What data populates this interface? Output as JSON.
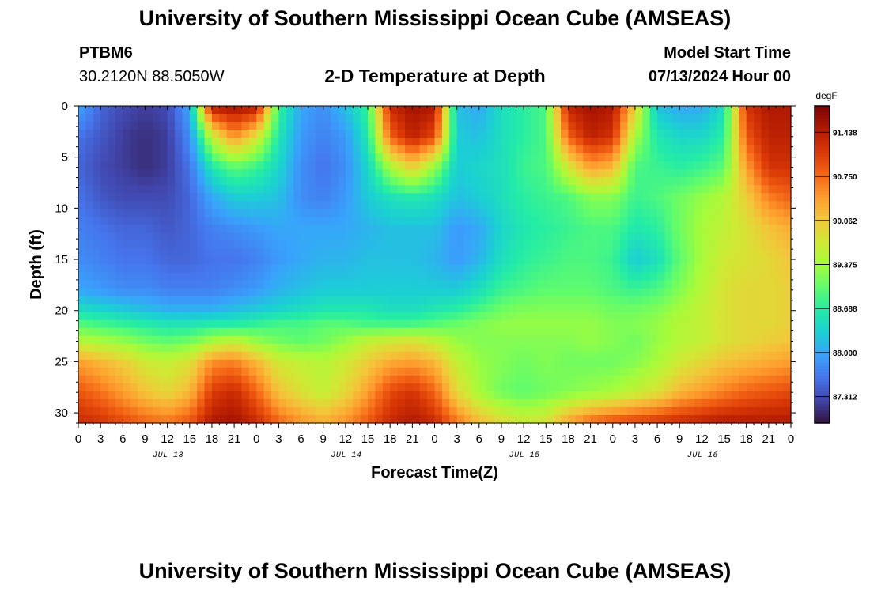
{
  "header": {
    "title": "University of Southern Mississippi Ocean Cube (AMSEAS)",
    "station": "PTBM6",
    "coords": "30.2120N  88.5050W",
    "subtitle": "2-D Temperature at Depth",
    "model_start_label": "Model Start Time",
    "model_start_value": "07/13/2024 Hour 00"
  },
  "footer": {
    "title": "University of Southern Mississippi Ocean Cube (AMSEAS)"
  },
  "chart_data": {
    "type": "heatmap",
    "title": "2-D Temperature at Depth",
    "xlabel": "Forecast Time(Z)",
    "ylabel": "Depth (ft)",
    "x_range_hours": [
      0,
      96
    ],
    "y_range_ft": [
      0,
      31
    ],
    "y_inverted": true,
    "x_tick_labels": [
      "0",
      "3",
      "6",
      "9",
      "12",
      "15",
      "18",
      "21",
      "0",
      "3",
      "6",
      "9",
      "12",
      "15",
      "18",
      "21",
      "0",
      "3",
      "6",
      "9",
      "12",
      "15",
      "18",
      "21",
      "0",
      "3",
      "6",
      "9",
      "12",
      "15",
      "18",
      "21",
      "0"
    ],
    "day_labels": [
      "JUL 13",
      "JUL 14",
      "JUL 15",
      "JUL 16"
    ],
    "y_tick_labels": [
      "0",
      "5",
      "10",
      "15",
      "20",
      "25",
      "30"
    ],
    "colorbar": {
      "unit": "degF",
      "range": [
        86.9,
        91.85
      ],
      "tick_labels": [
        "91.438",
        "90.750",
        "90.062",
        "89.375",
        "88.688",
        "88.000",
        "87.312"
      ],
      "tick_values": [
        91.438,
        90.75,
        90.062,
        89.375,
        88.688,
        88.0,
        87.312
      ],
      "colors": [
        "#30123b",
        "#4145ab",
        "#4675ed",
        "#39a2fc",
        "#1bcfd4",
        "#24eca6",
        "#61fc6c",
        "#a4fc3b",
        "#d1e834",
        "#f3c63a",
        "#fe9b2d",
        "#f36315",
        "#d93806",
        "#b11901",
        "#7a0402"
      ]
    },
    "depths_ft": [
      0,
      3,
      6,
      9,
      12,
      15,
      18,
      20,
      21.5,
      23,
      25,
      28,
      31
    ],
    "hours": [
      0,
      3,
      6,
      9,
      12,
      15,
      18,
      21,
      24,
      27,
      30,
      33,
      36,
      39,
      42,
      45,
      48,
      51,
      54,
      57,
      60,
      63,
      66,
      69,
      72,
      75,
      78,
      81,
      84,
      87,
      90,
      93,
      96
    ],
    "temperature_degF": [
      [
        88.0,
        87.5,
        87.3,
        87.2,
        87.3,
        88.0,
        91.5,
        91.6,
        91.5,
        88.8,
        88.0,
        87.8,
        88.2,
        88.8,
        91.3,
        91.6,
        91.5,
        88.2,
        88.0,
        88.5,
        88.7,
        88.9,
        91.4,
        91.6,
        91.5,
        90.0,
        88.2,
        88.0,
        88.0,
        88.5,
        91.2,
        91.5,
        91.5
      ],
      [
        87.6,
        87.4,
        87.2,
        87.1,
        87.2,
        87.8,
        89.6,
        90.5,
        89.8,
        88.6,
        87.9,
        87.7,
        87.9,
        88.6,
        90.8,
        91.4,
        91.0,
        88.3,
        88.2,
        88.5,
        88.7,
        88.9,
        90.8,
        91.4,
        91.2,
        89.4,
        88.6,
        88.4,
        88.4,
        88.7,
        90.9,
        91.4,
        91.4
      ],
      [
        87.5,
        87.3,
        87.2,
        87.1,
        87.2,
        87.6,
        88.6,
        89.0,
        88.8,
        88.4,
        87.8,
        87.6,
        87.8,
        88.4,
        89.4,
        90.0,
        89.3,
        88.3,
        88.4,
        88.5,
        88.8,
        88.9,
        89.7,
        90.4,
        90.2,
        88.9,
        88.8,
        88.7,
        88.8,
        89.0,
        90.4,
        91.2,
        91.2
      ],
      [
        87.6,
        87.4,
        87.3,
        87.3,
        87.3,
        87.5,
        88.0,
        88.3,
        88.3,
        88.2,
        87.8,
        87.7,
        87.9,
        88.3,
        88.5,
        88.6,
        88.5,
        88.2,
        88.3,
        88.5,
        88.7,
        88.8,
        88.9,
        89.2,
        89.2,
        88.8,
        88.9,
        89.1,
        89.3,
        89.5,
        90.0,
        90.6,
        90.8
      ],
      [
        87.7,
        87.6,
        87.5,
        87.5,
        87.4,
        87.5,
        87.7,
        87.8,
        87.9,
        88.0,
        88.0,
        88.0,
        88.0,
        88.1,
        88.2,
        88.2,
        88.2,
        87.9,
        88.0,
        88.4,
        88.6,
        88.7,
        88.8,
        88.9,
        88.9,
        88.6,
        88.7,
        89.1,
        89.4,
        89.6,
        89.8,
        90.1,
        90.3
      ],
      [
        87.8,
        87.7,
        87.6,
        87.6,
        87.5,
        87.5,
        87.6,
        87.6,
        87.7,
        87.9,
        88.0,
        88.1,
        88.1,
        88.2,
        88.2,
        88.2,
        88.1,
        87.9,
        88.1,
        88.5,
        88.7,
        88.8,
        88.9,
        88.9,
        88.8,
        88.3,
        88.5,
        89.0,
        89.4,
        89.7,
        89.8,
        89.9,
        90.1
      ],
      [
        88.0,
        87.9,
        87.8,
        87.8,
        87.7,
        87.7,
        87.7,
        87.8,
        87.9,
        88.1,
        88.2,
        88.3,
        88.3,
        88.3,
        88.3,
        88.3,
        88.3,
        88.3,
        88.5,
        88.8,
        88.9,
        89.0,
        89.0,
        89.0,
        88.9,
        88.8,
        88.9,
        89.2,
        89.5,
        89.8,
        89.9,
        89.9,
        90.0
      ],
      [
        88.5,
        88.4,
        88.3,
        88.2,
        88.1,
        88.1,
        88.1,
        88.2,
        88.3,
        88.4,
        88.5,
        88.6,
        88.6,
        88.6,
        88.5,
        88.5,
        88.6,
        88.7,
        88.9,
        89.1,
        89.2,
        89.2,
        89.2,
        89.2,
        89.1,
        89.1,
        89.2,
        89.4,
        89.6,
        89.8,
        89.9,
        89.9,
        90.0
      ],
      [
        89.0,
        88.9,
        88.8,
        88.7,
        88.6,
        88.6,
        88.7,
        88.7,
        88.8,
        88.9,
        88.9,
        89.0,
        89.0,
        88.9,
        88.9,
        88.9,
        89.0,
        89.1,
        89.2,
        89.3,
        89.3,
        89.3,
        89.3,
        89.3,
        89.2,
        89.2,
        89.3,
        89.5,
        89.6,
        89.8,
        89.9,
        89.9,
        90.0
      ],
      [
        89.5,
        89.4,
        89.3,
        89.1,
        89.0,
        89.1,
        89.4,
        89.6,
        89.3,
        89.1,
        89.0,
        89.1,
        89.3,
        89.6,
        89.7,
        89.8,
        89.6,
        89.3,
        89.2,
        89.2,
        89.2,
        89.2,
        89.2,
        89.3,
        89.2,
        89.1,
        89.3,
        89.5,
        89.6,
        89.8,
        89.9,
        90.0,
        90.1
      ],
      [
        90.4,
        90.2,
        90.0,
        89.7,
        89.6,
        89.8,
        90.5,
        90.6,
        90.2,
        89.7,
        89.6,
        89.5,
        89.7,
        90.0,
        90.3,
        90.4,
        90.2,
        89.6,
        89.3,
        89.2,
        89.1,
        89.2,
        89.1,
        89.1,
        89.1,
        89.2,
        89.4,
        89.7,
        89.9,
        90.1,
        90.2,
        90.3,
        90.4
      ],
      [
        90.9,
        90.7,
        90.4,
        90.1,
        89.9,
        90.2,
        91.1,
        91.3,
        90.8,
        90.1,
        89.8,
        89.6,
        89.9,
        90.4,
        91.0,
        91.2,
        90.8,
        89.9,
        89.4,
        89.1,
        89.0,
        89.1,
        89.2,
        89.3,
        89.4,
        89.6,
        89.8,
        90.2,
        90.4,
        90.6,
        90.8,
        90.9,
        91.0
      ],
      [
        91.3,
        91.2,
        91.0,
        90.8,
        90.7,
        90.9,
        91.5,
        91.6,
        91.3,
        90.8,
        90.5,
        90.3,
        90.5,
        90.9,
        91.3,
        91.5,
        91.3,
        90.7,
        90.2,
        89.9,
        89.7,
        89.8,
        90.4,
        90.8,
        91.0,
        91.1,
        91.2,
        91.3,
        91.4,
        91.5,
        91.5,
        91.5,
        91.5
      ]
    ]
  }
}
